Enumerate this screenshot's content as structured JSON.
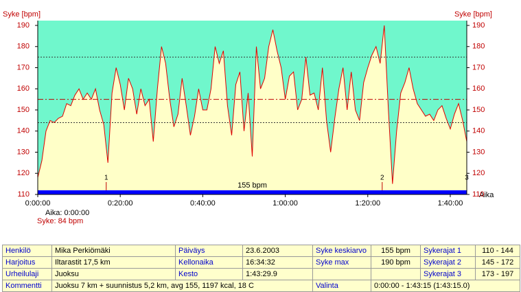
{
  "chart_data": {
    "type": "area",
    "ylabel": "Syke [bpm]",
    "y2label": "Syke [bpm]",
    "xlabel": "Aika",
    "ylim": [
      110,
      190
    ],
    "yticks": [
      110,
      120,
      130,
      140,
      150,
      160,
      170,
      180,
      190
    ],
    "y2lim": [
      110,
      190
    ],
    "y2ticks": [
      110,
      120,
      130,
      140,
      150,
      160,
      170,
      180,
      190
    ],
    "xlim": [
      0,
      104
    ],
    "xticks": [
      {
        "value": 0,
        "label": "0:00:00"
      },
      {
        "value": 20,
        "label": "0:20:00"
      },
      {
        "value": 40,
        "label": "0:40:00"
      },
      {
        "value": 60,
        "label": "1:00:00"
      },
      {
        "value": 80,
        "label": "1:20:00"
      },
      {
        "value": 100,
        "label": "1:40:00"
      }
    ],
    "line_color": "#e00000",
    "fill_color": "#ffffc8",
    "background_color": "#70f7cc",
    "x": [
      0,
      1,
      2,
      3,
      4,
      5,
      6,
      7,
      8,
      9,
      10,
      11,
      12,
      13,
      14,
      15,
      16,
      17,
      18,
      19,
      20,
      21,
      22,
      23,
      24,
      25,
      26,
      27,
      28,
      29,
      30,
      31,
      32,
      33,
      34,
      35,
      36,
      37,
      38,
      39,
      40,
      41,
      42,
      43,
      44,
      45,
      46,
      47,
      48,
      49,
      50,
      51,
      52,
      53,
      54,
      55,
      56,
      57,
      58,
      59,
      60,
      61,
      62,
      63,
      64,
      65,
      66,
      67,
      68,
      69,
      70,
      71,
      72,
      73,
      74,
      75,
      76,
      77,
      78,
      79,
      80,
      81,
      82,
      83,
      84,
      85,
      86,
      87,
      88,
      89,
      90,
      91,
      92,
      93,
      94,
      95,
      96,
      97,
      98,
      99,
      100,
      101,
      102,
      103,
      104
    ],
    "values": [
      118,
      126,
      140,
      145,
      144,
      146,
      147,
      153,
      152,
      157,
      160,
      155,
      158,
      155,
      160,
      150,
      143,
      125,
      158,
      170,
      162,
      150,
      165,
      160,
      148,
      160,
      152,
      155,
      135,
      160,
      180,
      172,
      155,
      142,
      148,
      165,
      152,
      138,
      147,
      160,
      150,
      150,
      160,
      180,
      172,
      178,
      152,
      138,
      162,
      168,
      140,
      158,
      128,
      180,
      160,
      165,
      180,
      188,
      178,
      170,
      155,
      166,
      168,
      150,
      155,
      175,
      157,
      158,
      150,
      170,
      145,
      130,
      146,
      160,
      170,
      150,
      168,
      150,
      145,
      163,
      170,
      176,
      180,
      172,
      190,
      150,
      115,
      140,
      158,
      163,
      170,
      160,
      153,
      150,
      147,
      148,
      145,
      150,
      152,
      146,
      141,
      148,
      153,
      145,
      135
    ],
    "reference_lines": [
      {
        "value": 175,
        "style": "dotted",
        "color": "#333333"
      },
      {
        "value": 155,
        "style": "dashdot",
        "color": "#c00000"
      },
      {
        "value": 144,
        "style": "dotted",
        "color": "#333333"
      }
    ],
    "average": 155,
    "average_label": "155 bpm",
    "average_color": "#0000ff",
    "laps": [
      {
        "label": "1",
        "x": 16.6
      },
      {
        "label": "2",
        "x": 83.5
      },
      {
        "label": "3",
        "x": 104
      }
    ],
    "cursor_time": "Aika: 0:00:00",
    "cursor_hr": "Syke: 84 bpm"
  },
  "table": {
    "rows": [
      [
        "Henkilö",
        "Mika Perkiömäki",
        "Päiväys",
        "23.6.2003",
        "Syke keskiarvo",
        "155 bpm",
        "Sykerajat 1",
        "110 - 144"
      ],
      [
        "Harjoitus",
        "Iltarastit 17,5 km",
        "Kellonaika",
        "16:34:32",
        "Syke max",
        "190 bpm",
        "Sykerajat 2",
        "145 - 172"
      ],
      [
        "Urheilulaji",
        "Juoksu",
        "Kesto",
        "1:43:29.9",
        "Sykerajat 3",
        "173 - 197"
      ],
      [
        "Kommentti",
        "Juoksu 7 km + suunnistus 5,2 km, avg 155, 1197 kcal, 18 C",
        "Valinta",
        "0:00:00 - 1:43:15 (1:43:15.0)"
      ]
    ]
  }
}
